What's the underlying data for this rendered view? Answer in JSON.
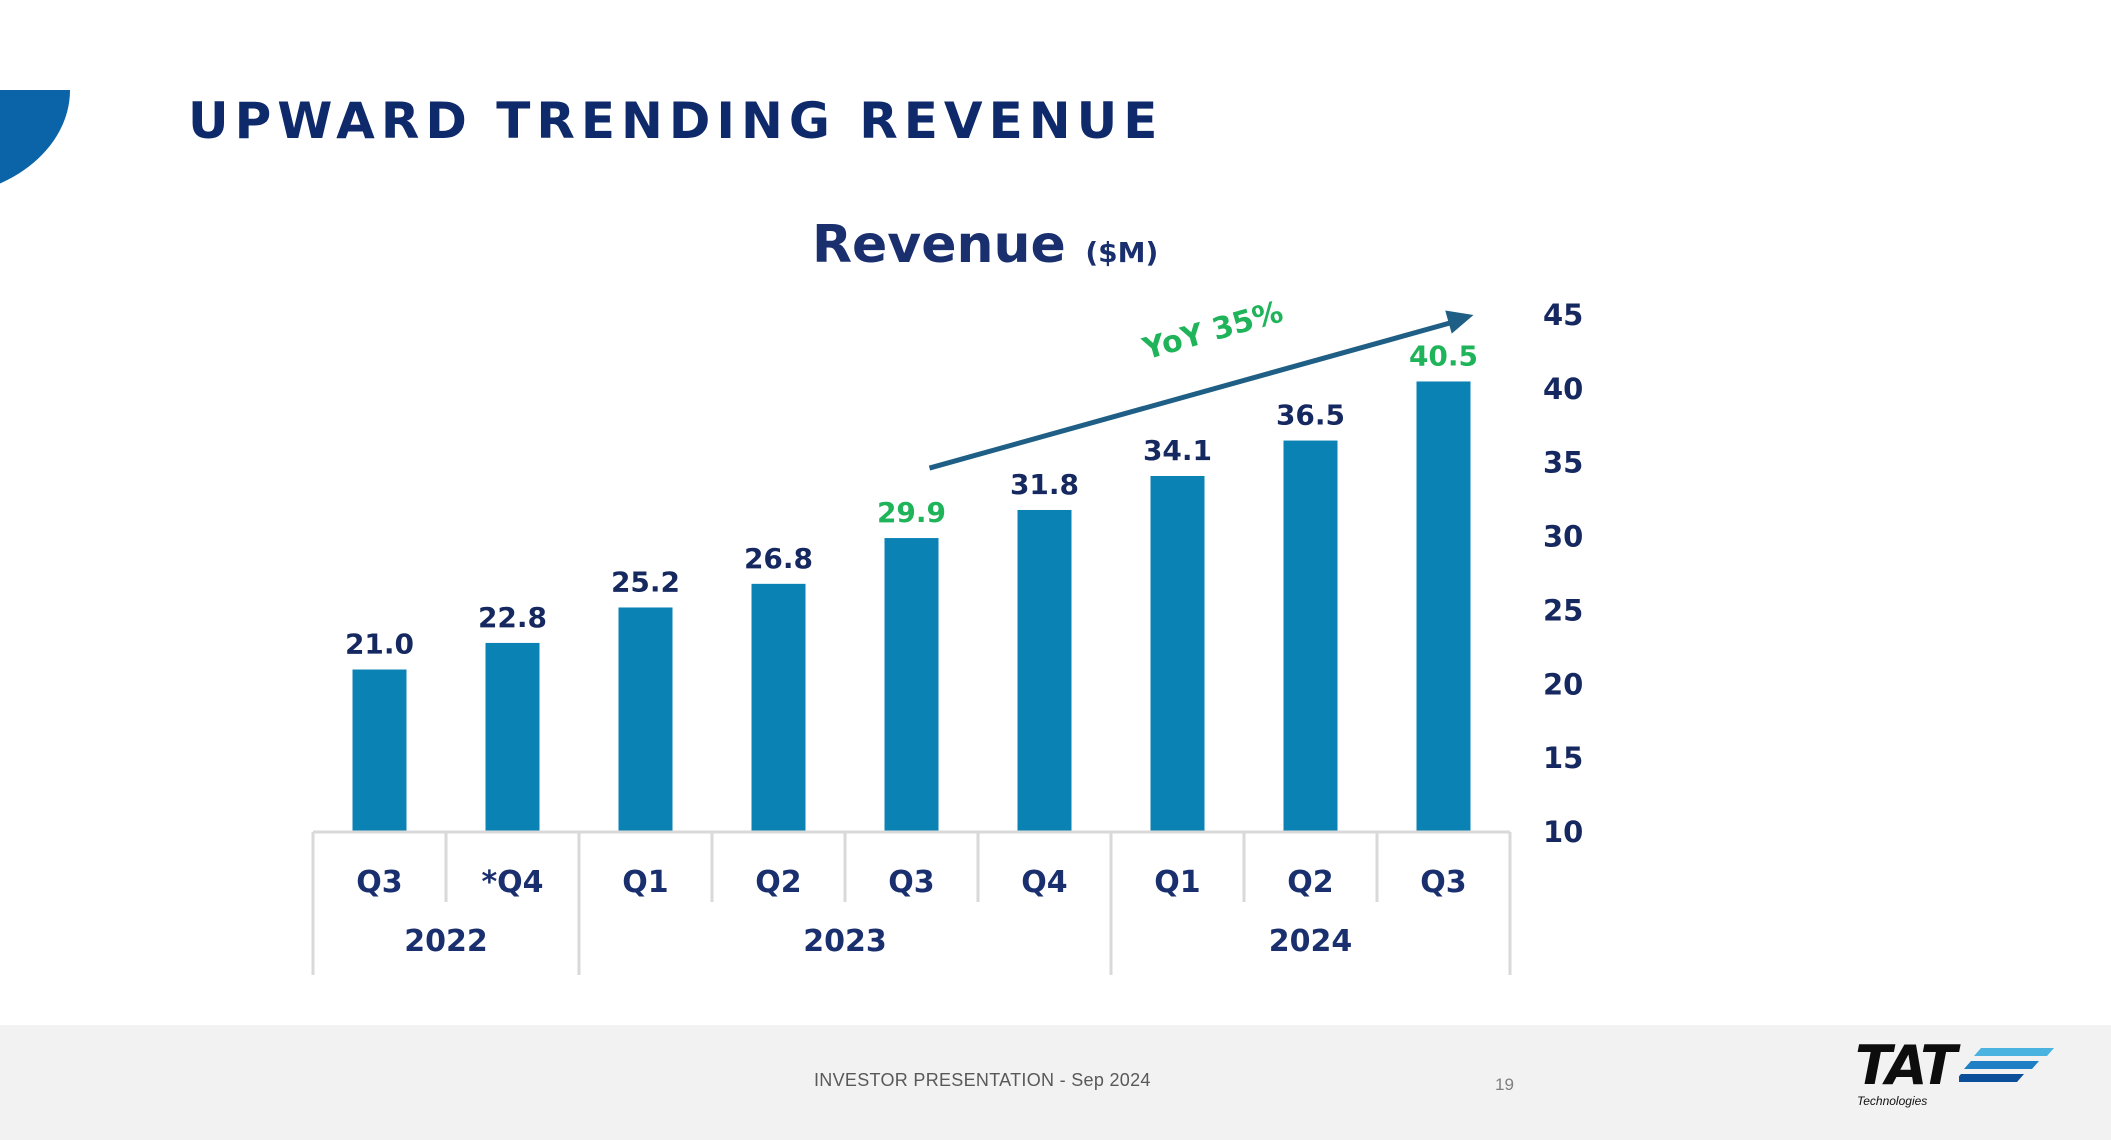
{
  "slide": {
    "title": "UPWARD TRENDING REVENUE",
    "footer_text": "INVESTOR PRESENTATION - Sep 2024",
    "page_number": "19",
    "logo_text": "TAT",
    "logo_subtext": "Technologies",
    "colors": {
      "title": "#0f2a6b",
      "accent_shape": "#0b63a8",
      "footer_bg": "#f2f2f2"
    }
  },
  "chart_data": {
    "type": "bar",
    "title": "Revenue",
    "title_unit": "($M)",
    "categories": [
      "Q3",
      "*Q4",
      "Q1",
      "Q2",
      "Q3",
      "Q4",
      "Q1",
      "Q2",
      "Q3"
    ],
    "groups": [
      {
        "label": "2022",
        "span": 2
      },
      {
        "label": "2023",
        "span": 4
      },
      {
        "label": "2024",
        "span": 3
      }
    ],
    "values": [
      21.0,
      22.8,
      25.2,
      26.8,
      29.9,
      31.8,
      34.1,
      36.5,
      40.5
    ],
    "value_labels": [
      "21.0",
      "22.8",
      "25.2",
      "26.8",
      "29.9",
      "31.8",
      "34.1",
      "36.5",
      "40.5"
    ],
    "highlighted_indices": [
      4,
      8
    ],
    "ylim": [
      10,
      45
    ],
    "yticks": [
      10,
      15,
      20,
      25,
      30,
      35,
      40,
      45
    ],
    "y_axis_position": "right",
    "grid": false,
    "annotation": {
      "text": "YoY 35%",
      "from_index": 4,
      "to_index": 8
    },
    "colors": {
      "bar": "#0a82b4",
      "label": "#15285f",
      "highlight_label": "#1fb35a",
      "arrow": "#1f5f86",
      "table_border": "#d9d9d9"
    }
  }
}
